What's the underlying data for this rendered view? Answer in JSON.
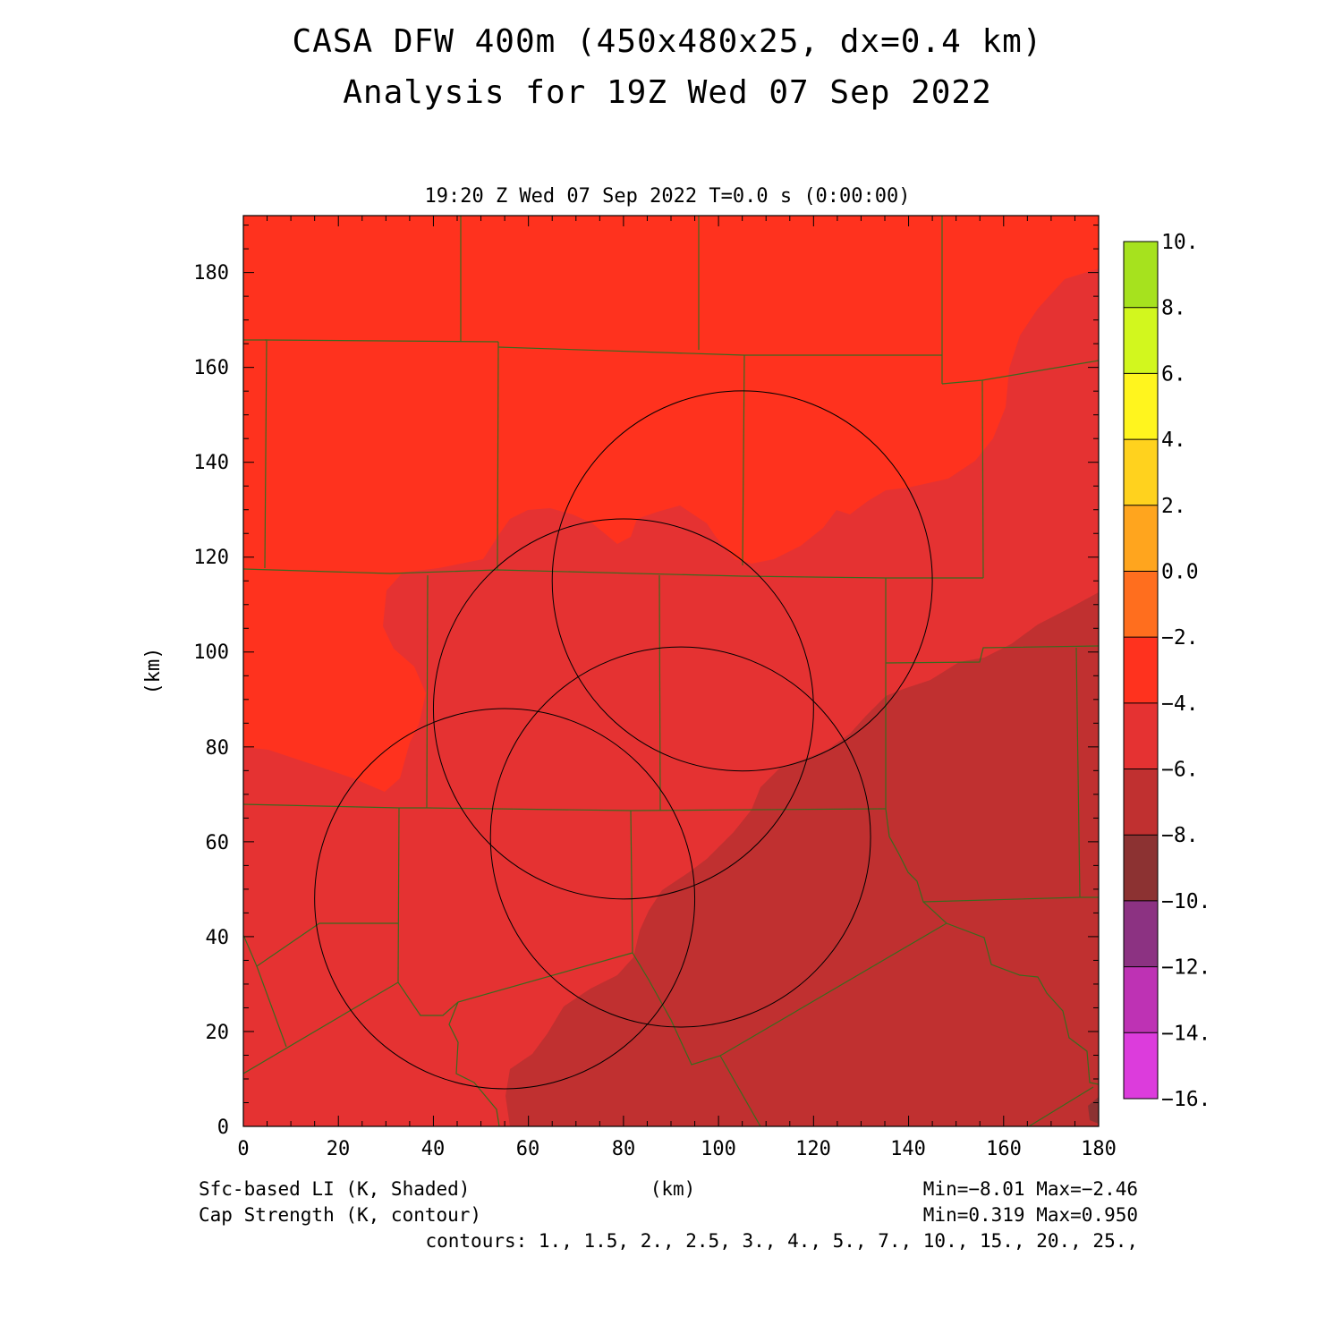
{
  "title": {
    "line1": "CASA DFW 400m (450x480x25, dx=0.4 km)",
    "line2": "Analysis for 19Z Wed 07 Sep 2022"
  },
  "subtitle": "19:20 Z Wed 07 Sep 2022   T=0.0 s (0:00:00)",
  "axes": {
    "xlabel": "(km)",
    "ylabel": "(km)",
    "xlim": [
      0,
      180
    ],
    "ylim": [
      0,
      192
    ],
    "xticks": [
      "0",
      "20",
      "40",
      "60",
      "80",
      "100",
      "120",
      "140",
      "160",
      "180"
    ],
    "yticks": [
      "0",
      "20",
      "40",
      "60",
      "80",
      "100",
      "120",
      "140",
      "160",
      "180"
    ]
  },
  "colorbar": {
    "labels": [
      "10.",
      "8.",
      "6.",
      "4.",
      "2.",
      "0.0",
      "−2.",
      "−4.",
      "−6.",
      "−8.",
      "−10.",
      "−12.",
      "−14.",
      "−16."
    ],
    "colors": [
      "#a6e21e",
      "#d2f71e",
      "#fff51e",
      "#ffd21e",
      "#ffa51e",
      "#ff6e1e",
      "#ff321e",
      "#e53232",
      "#c03030",
      "#8c3232",
      "#8c3282",
      "#be32b4",
      "#dc3cdc"
    ]
  },
  "field": {
    "colors": {
      "m2_m4": "#ff321e",
      "m4_m6": "#e53232",
      "m6_m8": "#c03030"
    }
  },
  "radars": [
    {
      "x": 105,
      "y": 115,
      "r": 40
    },
    {
      "x": 80,
      "y": 88,
      "r": 40
    },
    {
      "x": 92,
      "y": 61,
      "r": 40
    },
    {
      "x": 55,
      "y": 48,
      "r": 40
    }
  ],
  "footer": {
    "left1": "Sfc-based LI (K, Shaded)",
    "left2": "Cap Strength (K, contour)",
    "center": "(km)",
    "right1": "Min=−8.01 Max=−2.46",
    "right2": "Min=0.319 Max=0.950",
    "contours": "contours: 1., 1.5, 2., 2.5, 3., 4., 5., 7., 10., 15., 20., 25.,"
  }
}
